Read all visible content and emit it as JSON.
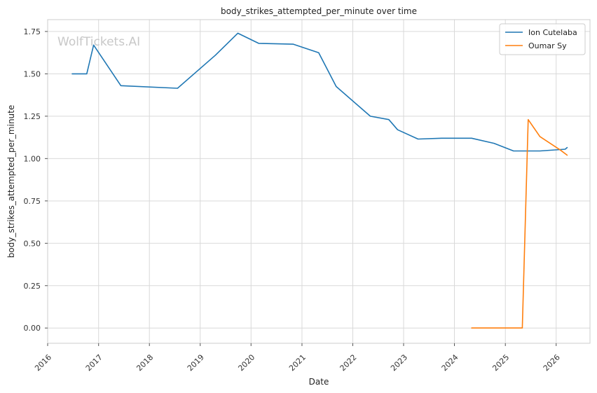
{
  "chart_data": {
    "type": "line",
    "title": "body_strikes_attempted_per_minute over time",
    "xlabel": "Date",
    "ylabel": "body_strikes_attempted_per_minute",
    "watermark": "WolfTickets.AI",
    "xlim": [
      "2016-01-01",
      "2026-09-01"
    ],
    "ylim": [
      -0.09,
      1.82
    ],
    "x_ticks": [
      "2016-01-01",
      "2017-01-01",
      "2018-01-01",
      "2019-01-01",
      "2020-01-01",
      "2021-01-01",
      "2022-01-01",
      "2023-01-01",
      "2024-01-01",
      "2025-01-01",
      "2026-01-01"
    ],
    "x_tick_labels": [
      "2016",
      "2017",
      "2018",
      "2019",
      "2020",
      "2021",
      "2022",
      "2023",
      "2024",
      "2025",
      "2026"
    ],
    "y_ticks": [
      0.0,
      0.25,
      0.5,
      0.75,
      1.0,
      1.25,
      1.5,
      1.75
    ],
    "y_tick_labels": [
      "0.00",
      "0.25",
      "0.50",
      "0.75",
      "1.00",
      "1.25",
      "1.50",
      "1.75"
    ],
    "grid": true,
    "legend_position": "top-right",
    "series": [
      {
        "name": "Ion Cutelaba",
        "color": "#1f77b4",
        "x": [
          "2016-06-25",
          "2016-10-08",
          "2016-11-26",
          "2017-06-10",
          "2018-07-22",
          "2019-04-20",
          "2019-09-28",
          "2020-02-25",
          "2020-10-31",
          "2021-05-01",
          "2021-09-04",
          "2022-05-07",
          "2022-09-17",
          "2022-11-19",
          "2023-04-15",
          "2023-10-01",
          "2024-05-04",
          "2024-10-12",
          "2025-03-01",
          "2025-09-06",
          "2026-03-07",
          "2026-03-21"
        ],
        "y": [
          1.5,
          1.5,
          1.67,
          1.43,
          1.415,
          1.61,
          1.74,
          1.68,
          1.675,
          1.625,
          1.425,
          1.25,
          1.23,
          1.17,
          1.115,
          1.12,
          1.12,
          1.09,
          1.045,
          1.045,
          1.055,
          1.065
        ]
      },
      {
        "name": "Oumar Sy",
        "color": "#ff7f0e",
        "x": [
          "2024-05-04",
          "2025-05-03",
          "2025-06-14",
          "2025-09-06",
          "2026-02-01",
          "2026-03-21"
        ],
        "y": [
          0.0,
          0.0,
          1.23,
          1.13,
          1.05,
          1.02
        ]
      }
    ]
  }
}
